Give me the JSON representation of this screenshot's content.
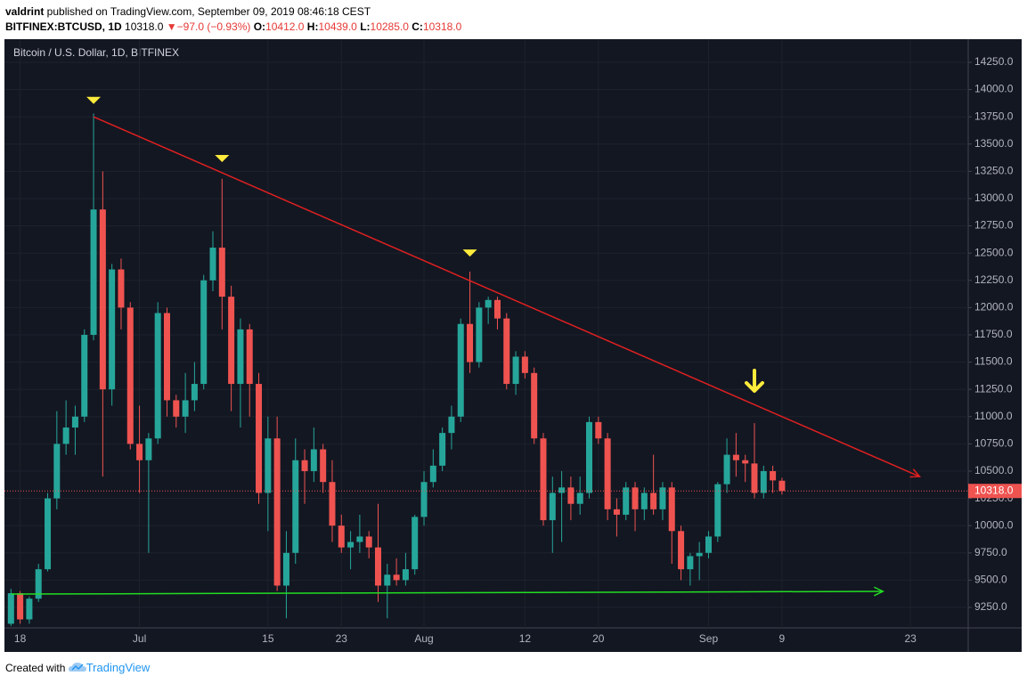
{
  "header": {
    "publisher": "valdrint",
    "published": " published on TradingView.com, September 09, 2019 08:46:18 CEST",
    "symbol": "BITFINEX:BTCUSD, 1D",
    "last": "10318.0",
    "arrow": "▼",
    "change": "−97.0 (−0.93%)",
    "ohlc": [
      {
        "key": "O:",
        "value": "10412.0"
      },
      {
        "key": "H:",
        "value": "10439.0"
      },
      {
        "key": "L:",
        "value": "10285.0"
      },
      {
        "key": "C:",
        "value": "10318.0"
      }
    ]
  },
  "footer": {
    "text": "Created with",
    "brand": "TradingView"
  },
  "chart_data": {
    "type": "candlestick",
    "title": "Bitcoin / U.S. Dollar, 1D, BITFINEX",
    "up_color": "#26a69a",
    "down_color": "#ef5350",
    "background": "#131722",
    "grid": true,
    "x": [
      "Jun 17",
      "Jun 18",
      "Jun 19",
      "Jun 20",
      "Jun 21",
      "Jun 22",
      "Jun 23",
      "Jun 24",
      "Jun 25",
      "Jun 26",
      "Jun 27",
      "Jun 28",
      "Jun 29",
      "Jun 30",
      "Jul 1",
      "Jul 2",
      "Jul 3",
      "Jul 4",
      "Jul 5",
      "Jul 6",
      "Jul 7",
      "Jul 8",
      "Jul 9",
      "Jul 10",
      "Jul 11",
      "Jul 12",
      "Jul 13",
      "Jul 14",
      "Jul 15",
      "Jul 16",
      "Jul 17",
      "Jul 18",
      "Jul 19",
      "Jul 20",
      "Jul 21",
      "Jul 22",
      "Jul 23",
      "Jul 24",
      "Jul 25",
      "Jul 26",
      "Jul 27",
      "Jul 28",
      "Jul 29",
      "Jul 30",
      "Jul 31",
      "Aug 1",
      "Aug 2",
      "Aug 3",
      "Aug 4",
      "Aug 5",
      "Aug 6",
      "Aug 7",
      "Aug 8",
      "Aug 9",
      "Aug 10",
      "Aug 11",
      "Aug 12",
      "Aug 13",
      "Aug 14",
      "Aug 15",
      "Aug 16",
      "Aug 17",
      "Aug 18",
      "Aug 19",
      "Aug 20",
      "Aug 21",
      "Aug 22",
      "Aug 23",
      "Aug 24",
      "Aug 25",
      "Aug 26",
      "Aug 27",
      "Aug 28",
      "Aug 29",
      "Aug 30",
      "Aug 31",
      "Sep 1",
      "Sep 2",
      "Sep 3",
      "Sep 4",
      "Sep 5",
      "Sep 6",
      "Sep 7",
      "Sep 8",
      "Sep 9"
    ],
    "open": [
      9100,
      9380,
      9140,
      9330,
      9600,
      10250,
      10750,
      10900,
      11000,
      11750,
      12900,
      11250,
      12350,
      12000,
      10750,
      10600,
      10800,
      11950,
      11150,
      11000,
      11150,
      11300,
      12250,
      12550,
      12100,
      11300,
      11800,
      11300,
      10300,
      10800,
      9450,
      9750,
      10600,
      10500,
      10700,
      10400,
      10000,
      9800,
      9850,
      9900,
      9800,
      9450,
      9550,
      9500,
      9600,
      10080,
      10400,
      10550,
      10850,
      11000,
      11850,
      11500,
      12000,
      12070,
      11900,
      11300,
      11550,
      11400,
      10800,
      10050,
      10300,
      10350,
      10200,
      10300,
      10950,
      10800,
      10150,
      10100,
      10350,
      10150,
      10300,
      10150,
      10350,
      9950,
      9600,
      9720,
      9750,
      9900,
      10380,
      10650,
      10600,
      10570,
      10300,
      10500,
      10412
    ],
    "high": [
      9420,
      9400,
      9350,
      9650,
      10300,
      11050,
      11150,
      11100,
      11800,
      13780,
      13250,
      12400,
      12450,
      12050,
      11100,
      10850,
      12050,
      12000,
      11200,
      11400,
      11500,
      12300,
      12700,
      13180,
      12200,
      11900,
      11850,
      11400,
      11000,
      11000,
      9950,
      10800,
      10700,
      10900,
      10750,
      10600,
      10100,
      9950,
      10100,
      9950,
      10200,
      9650,
      9700,
      9750,
      10100,
      10500,
      10700,
      10900,
      11100,
      11900,
      12330,
      12050,
      12100,
      12100,
      11950,
      11600,
      11600,
      11450,
      10850,
      10450,
      10500,
      10450,
      10450,
      11000,
      11000,
      10850,
      10250,
      10400,
      10400,
      10350,
      10650,
      10400,
      10400,
      10000,
      9750,
      9850,
      9950,
      10400,
      10800,
      10850,
      10650,
      10940,
      10550,
      10550,
      10439
    ],
    "low": [
      9080,
      9100,
      9100,
      9300,
      9580,
      10150,
      10650,
      10650,
      10950,
      11700,
      10450,
      11100,
      11800,
      10700,
      10300,
      9750,
      10750,
      11000,
      10900,
      10850,
      11050,
      11250,
      12150,
      11800,
      11050,
      10900,
      11000,
      10200,
      9950,
      9400,
      9150,
      9650,
      10200,
      10400,
      10300,
      9850,
      9750,
      9600,
      9750,
      9700,
      9300,
      9150,
      9450,
      9450,
      9550,
      10000,
      10350,
      10500,
      10700,
      10950,
      11400,
      11450,
      11850,
      11800,
      11250,
      11200,
      11350,
      10750,
      10000,
      9750,
      9850,
      10050,
      10100,
      10250,
      10750,
      10050,
      9900,
      10050,
      9950,
      10050,
      10100,
      10050,
      9650,
      9500,
      9450,
      9500,
      9700,
      9850,
      10300,
      10450,
      10400,
      10250,
      10250,
      10300,
      10285
    ],
    "close": [
      9380,
      9140,
      9330,
      9600,
      10250,
      10750,
      10900,
      11000,
      11750,
      12900,
      11250,
      12350,
      12000,
      10750,
      10600,
      10800,
      11950,
      11150,
      11000,
      11150,
      11300,
      12250,
      12550,
      12100,
      11300,
      11800,
      11300,
      10300,
      10800,
      9450,
      9750,
      10600,
      10500,
      10700,
      10400,
      10000,
      9800,
      9850,
      9900,
      9800,
      9450,
      9550,
      9500,
      9600,
      10080,
      10400,
      10550,
      10850,
      11000,
      11850,
      11500,
      12000,
      12070,
      11900,
      11300,
      11550,
      11400,
      10800,
      10050,
      10300,
      10350,
      10200,
      10300,
      10950,
      10800,
      10150,
      10100,
      10350,
      10150,
      10300,
      10150,
      10350,
      9950,
      9600,
      9720,
      9750,
      9900,
      10380,
      10650,
      10600,
      10570,
      10300,
      10500,
      10415,
      10318
    ],
    "price_label": "10318.0",
    "xlim": [
      "Jun 16",
      "Sep 29"
    ],
    "xticks": [
      {
        "value": "Jun 18",
        "label": "18"
      },
      {
        "value": "Jul 1",
        "label": "Jul"
      },
      {
        "value": "Jul 15",
        "label": "15"
      },
      {
        "value": "Jul 23",
        "label": "23"
      },
      {
        "value": "Aug 1",
        "label": "Aug"
      },
      {
        "value": "Aug 12",
        "label": "12"
      },
      {
        "value": "Aug 20",
        "label": "20"
      },
      {
        "value": "Sep 1",
        "label": "Sep"
      },
      {
        "value": "Sep 9",
        "label": "9"
      },
      {
        "value": "Sep 23",
        "label": "23"
      }
    ],
    "ylim": [
      9062,
      14462
    ],
    "yticks": [
      {
        "value": 9250,
        "label": "9250.0"
      },
      {
        "value": 9500,
        "label": "9500.0"
      },
      {
        "value": 9750,
        "label": "9750.0"
      },
      {
        "value": 10000,
        "label": "10000.0"
      },
      {
        "value": 10250,
        "label": "10250.0"
      },
      {
        "value": 10500,
        "label": "10500.0"
      },
      {
        "value": 10750,
        "label": "10750.0"
      },
      {
        "value": 11000,
        "label": "11000.0"
      },
      {
        "value": 11250,
        "label": "11250.0"
      },
      {
        "value": 11500,
        "label": "11500.0"
      },
      {
        "value": 11750,
        "label": "11750.0"
      },
      {
        "value": 12000,
        "label": "12000.0"
      },
      {
        "value": 12250,
        "label": "12250.0"
      },
      {
        "value": 12500,
        "label": "12500.0"
      },
      {
        "value": 12750,
        "label": "12750.0"
      },
      {
        "value": 13000,
        "label": "13000.0"
      },
      {
        "value": 13250,
        "label": "13250.0"
      },
      {
        "value": 13500,
        "label": "13500.0"
      },
      {
        "value": 13750,
        "label": "13750.0"
      },
      {
        "value": 14000,
        "label": "14000.0"
      },
      {
        "value": 14250,
        "label": "14250.0"
      }
    ],
    "annotations": {
      "trendlines": [
        {
          "color": "#e02020",
          "points": [
            [
              "Jun 26",
              13750
            ],
            [
              "Sep 24",
              10450
            ]
          ]
        },
        {
          "color": "#22dd22",
          "points": [
            [
              "Jun 17",
              9372
            ],
            [
              "Sep 20",
              9397
            ]
          ]
        }
      ],
      "markers": [
        {
          "date": "Jun 26",
          "price": 13900
        },
        {
          "date": "Jul 10",
          "price": 13367
        },
        {
          "date": "Aug 6",
          "price": 12500
        }
      ],
      "marker_color": "#ffeb3b",
      "arrow": {
        "date": "Sep 6",
        "price": 11309
      }
    }
  }
}
